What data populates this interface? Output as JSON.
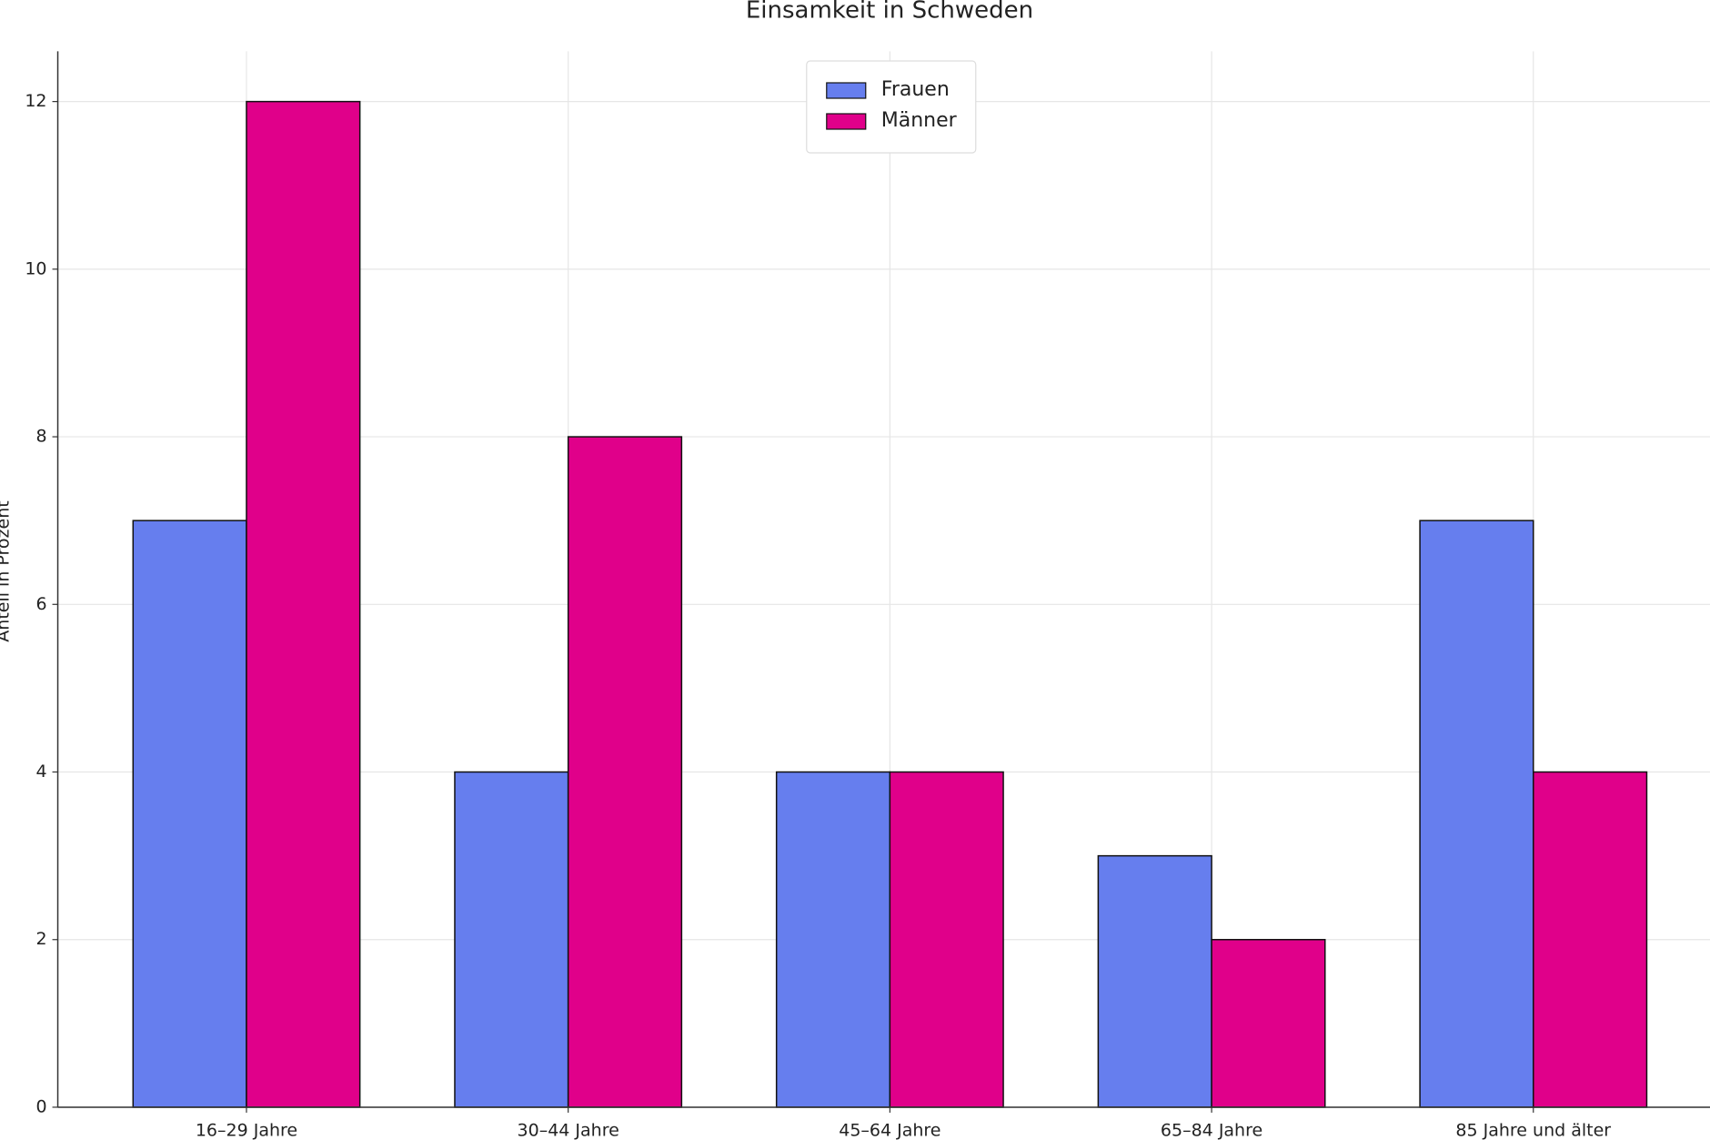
{
  "chart_data": {
    "type": "bar",
    "title": "Einsamkeit in Schweden",
    "y_label": "Anteil in Prozent",
    "categories": [
      "16–29 Jahre",
      "30–44 Jahre",
      "45–64 Jahre",
      "65–84 Jahre",
      "85 Jahre und älter"
    ],
    "series": [
      {
        "name": "Frauen",
        "color": "#667eee",
        "values": [
          7,
          4,
          4,
          3,
          7
        ]
      },
      {
        "name": "Männer",
        "color": "#e0008a",
        "values": [
          12,
          8,
          4,
          2,
          4
        ]
      }
    ],
    "ylim": [
      0,
      12.6
    ],
    "yticks": [
      0,
      2,
      4,
      6,
      8,
      10,
      12
    ],
    "grid": true,
    "legend": "upper center"
  }
}
